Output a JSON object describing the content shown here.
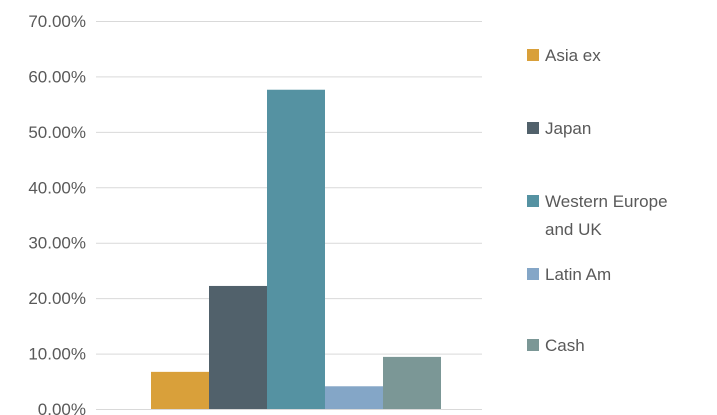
{
  "chart_data": {
    "type": "bar",
    "title": "",
    "xlabel": "",
    "ylabel": "",
    "ylim": [
      0,
      70
    ],
    "y_ticks": [
      "0.00%",
      "10.00%",
      "20.00%",
      "30.00%",
      "40.00%",
      "50.00%",
      "60.00%",
      "70.00%"
    ],
    "y_tick_values": [
      0,
      10,
      20,
      30,
      40,
      50,
      60,
      70
    ],
    "grid": true,
    "legend_position": "right",
    "categories": [
      ""
    ],
    "series": [
      {
        "name": "Asia ex",
        "values": [
          6.7
        ],
        "color": "#D9A03A"
      },
      {
        "name": "Japan",
        "values": [
          22.2
        ],
        "color": "#51616B"
      },
      {
        "name": "Western Europe and UK",
        "legend_lines": [
          "Western Europe",
          "and UK"
        ],
        "values": [
          57.6
        ],
        "color": "#5592A2"
      },
      {
        "name": "Latin Am",
        "values": [
          4.1
        ],
        "color": "#84A6C7"
      },
      {
        "name": "Cash",
        "values": [
          9.4
        ],
        "color": "#7B9796"
      }
    ]
  }
}
